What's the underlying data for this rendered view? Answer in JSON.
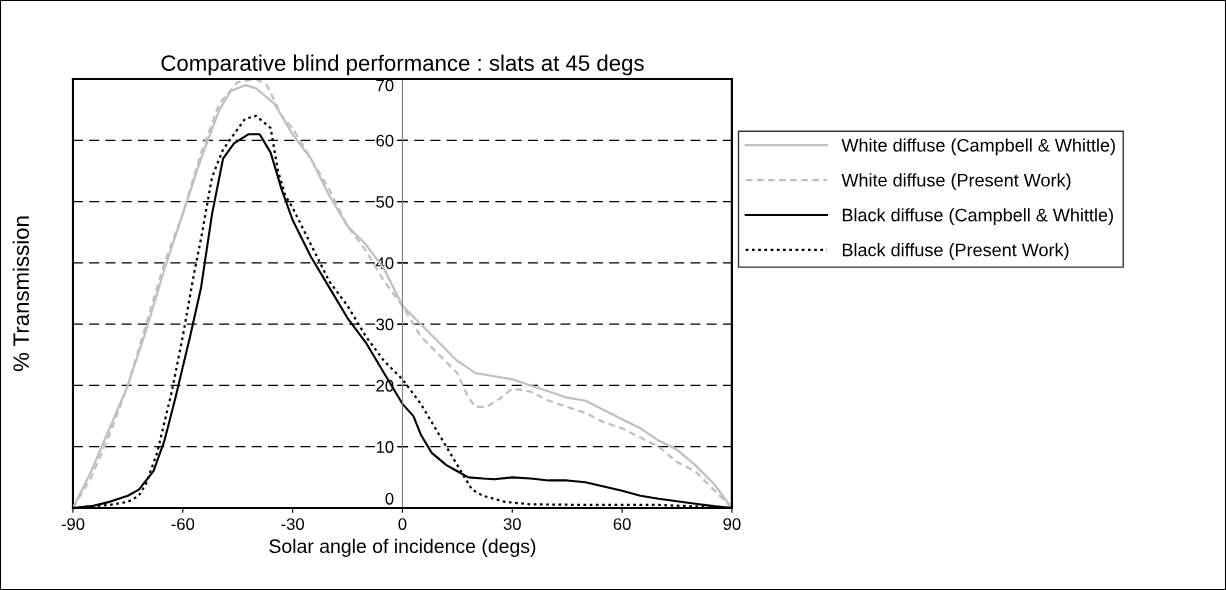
{
  "chart_data": {
    "type": "line",
    "title": "Comparative blind performance : slats at 45 degs",
    "xlabel": "Solar angle of incidence (degs)",
    "ylabel": "% Transmission",
    "xlim": [
      -90,
      90
    ],
    "xticks": [
      -90,
      -60,
      -30,
      0,
      30,
      60,
      90
    ],
    "ylim": [
      0,
      70
    ],
    "yticks": [
      0,
      10,
      20,
      30,
      40,
      50,
      60,
      70
    ],
    "grid": "y",
    "legend": "right",
    "marker": "none",
    "series": [
      {
        "name": "White diffuse (Campbell & Whittle)",
        "color": "#c0c0c0",
        "line_style": "solid",
        "x": [
          -90,
          -85,
          -80,
          -75,
          -70,
          -65,
          -60,
          -55,
          -50,
          -47,
          -43,
          -40,
          -35,
          -30,
          -25,
          -20,
          -15,
          -10,
          -5,
          0,
          5,
          10,
          15,
          20,
          25,
          30,
          35,
          40,
          45,
          50,
          55,
          60,
          65,
          70,
          75,
          80,
          85,
          90
        ],
        "values": [
          0,
          6,
          13,
          20,
          29,
          39,
          48,
          57,
          65,
          68,
          69,
          68.5,
          66,
          61,
          57,
          51,
          46,
          43,
          39,
          33,
          30,
          27,
          24,
          22,
          21.5,
          21,
          20,
          19,
          18,
          17.5,
          16,
          14.5,
          13,
          11,
          9.5,
          7,
          4,
          0
        ]
      },
      {
        "name": "White diffuse (Present Work)",
        "color": "#c0c0c0",
        "line_style": "dashed",
        "x": [
          -90,
          -85,
          -80,
          -75,
          -70,
          -65,
          -60,
          -55,
          -50,
          -45,
          -40,
          -37,
          -33,
          -30,
          -25,
          -20,
          -15,
          -10,
          -5,
          0,
          5,
          10,
          15,
          18,
          20,
          23,
          27,
          30,
          35,
          40,
          45,
          50,
          55,
          60,
          65,
          70,
          75,
          80,
          85,
          90
        ],
        "values": [
          0,
          5,
          12,
          20,
          30,
          40,
          48,
          58,
          66,
          69.5,
          70,
          69,
          64,
          62,
          57,
          52,
          46,
          42,
          37,
          33,
          28,
          25,
          22,
          18,
          16.5,
          16.5,
          18,
          19.5,
          19,
          17.5,
          16.5,
          15.5,
          14,
          13,
          11.5,
          10,
          7.5,
          6,
          3,
          0
        ]
      },
      {
        "name": "Black diffuse (Campbell & Whittle)",
        "color": "#000000",
        "line_style": "solid",
        "x": [
          -90,
          -85,
          -80,
          -75,
          -72,
          -68,
          -65,
          -62,
          -60,
          -58,
          -55,
          -52,
          -49,
          -46,
          -42,
          -39,
          -36,
          -33,
          -30,
          -25,
          -20,
          -15,
          -10,
          -5,
          0,
          3,
          5,
          8,
          12,
          15,
          18,
          22,
          25,
          30,
          35,
          40,
          45,
          50,
          55,
          60,
          65,
          70,
          75,
          80,
          85,
          90
        ],
        "values": [
          0,
          0.3,
          1,
          2,
          3,
          6,
          11,
          18,
          23,
          28,
          36,
          48,
          57,
          59.5,
          61,
          61,
          58,
          52,
          47,
          41,
          36,
          31,
          27,
          22,
          17,
          15,
          12,
          9,
          7,
          6,
          5,
          4.8,
          4.7,
          5,
          4.8,
          4.5,
          4.5,
          4.2,
          3.5,
          2.8,
          2,
          1.5,
          1.1,
          0.7,
          0.3,
          0
        ]
      },
      {
        "name": "Black diffuse (Present Work)",
        "color": "#000000",
        "line_style": "dotted",
        "x": [
          -90,
          -80,
          -75,
          -72,
          -70,
          -67,
          -63,
          -60,
          -57,
          -55,
          -52,
          -49,
          -46,
          -43,
          -40,
          -38,
          -36,
          -34,
          -32,
          -30,
          -25,
          -20,
          -15,
          -10,
          -5,
          0,
          5,
          10,
          15,
          19,
          22,
          28,
          35,
          50,
          70,
          90
        ],
        "values": [
          0,
          0.5,
          1,
          2,
          4,
          9,
          19,
          28,
          38,
          44,
          54,
          58.5,
          61,
          63.5,
          64,
          63,
          62,
          55,
          51,
          49,
          43,
          37,
          33,
          28,
          24,
          21,
          17,
          12,
          7,
          3,
          2,
          1,
          0.6,
          0.5,
          0.5,
          0
        ]
      }
    ]
  }
}
